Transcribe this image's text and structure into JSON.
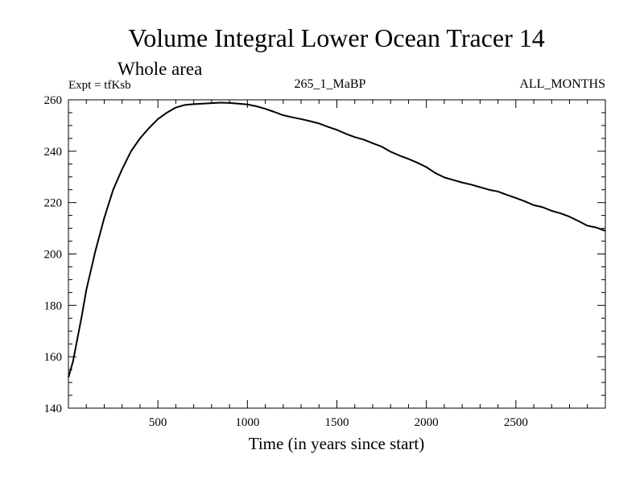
{
  "chart_data": {
    "type": "line",
    "title": "Volume Integral Lower Ocean Tracer 14",
    "subtitle": "Whole area",
    "annotations": {
      "left": "Expt = tfKsb",
      "center": "265_1_MaBP",
      "right": "ALL_MONTHS"
    },
    "xlabel": "Time (in years since start)",
    "ylabel": "",
    "xlim": [
      0,
      3000
    ],
    "ylim": [
      140,
      260
    ],
    "xticks": [
      500,
      1000,
      1500,
      2000,
      2500
    ],
    "yticks": [
      140,
      160,
      180,
      200,
      220,
      240,
      260
    ],
    "grid": false,
    "line_color": "#000000",
    "series": [
      {
        "name": "Tracer 14",
        "x": [
          0,
          25,
          50,
          75,
          100,
          150,
          200,
          250,
          300,
          350,
          400,
          450,
          500,
          550,
          600,
          650,
          700,
          750,
          800,
          850,
          900,
          950,
          1000,
          1050,
          1100,
          1150,
          1200,
          1250,
          1300,
          1350,
          1400,
          1450,
          1500,
          1550,
          1600,
          1650,
          1700,
          1750,
          1800,
          1850,
          1900,
          1950,
          2000,
          2050,
          2100,
          2150,
          2200,
          2250,
          2300,
          2350,
          2400,
          2450,
          2500,
          2550,
          2600,
          2650,
          2700,
          2750,
          2800,
          2850,
          2900,
          2950,
          3000
        ],
        "y": [
          152,
          158,
          167,
          176,
          186,
          201,
          214,
          225,
          233,
          240,
          245,
          249,
          252.5,
          255,
          257,
          258,
          258.3,
          258.5,
          258.7,
          258.9,
          258.8,
          258.5,
          258.2,
          257.5,
          256.5,
          255.3,
          254,
          253.2,
          252.5,
          251.7,
          250.8,
          249.5,
          248.3,
          246.8,
          245.5,
          244.5,
          243.1,
          241.8,
          239.8,
          238.3,
          237,
          235.5,
          233.8,
          231.5,
          229.8,
          228.8,
          227.8,
          227,
          226,
          225,
          224.3,
          223,
          221.8,
          220.5,
          219,
          218.2,
          216.8,
          215.8,
          214.5,
          212.8,
          211,
          210.3,
          209
        ]
      }
    ]
  }
}
